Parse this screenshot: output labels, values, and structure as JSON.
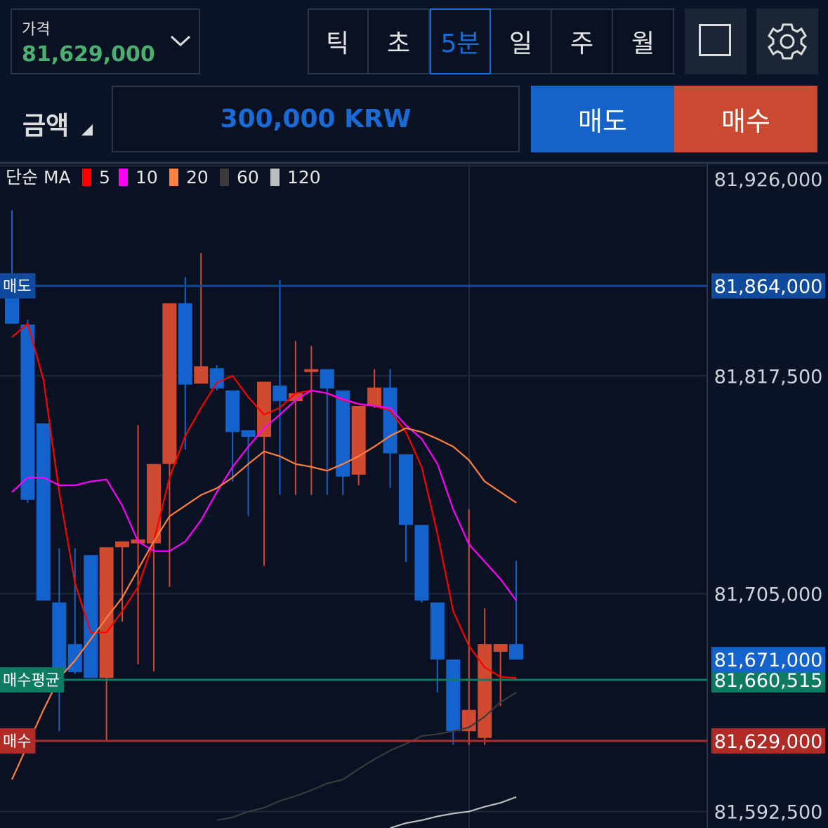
{
  "header": {
    "price_label": "가격",
    "price": "81,629,000",
    "tabs": [
      "틱",
      "초",
      "5분",
      "일",
      "주",
      "월"
    ],
    "selected_tab": "5분",
    "amount_label": "금액",
    "amount": "300,000 KRW",
    "sell_button": "매도",
    "buy_button": "매수"
  },
  "chart_data": {
    "type": "candlestick",
    "legend_title": "단순 MA",
    "up_color": "#cf4a30",
    "down_color": "#1463cc",
    "open": [
      81864500,
      81844000,
      81793000,
      81700500,
      81679000,
      81725000,
      81661500,
      81729000,
      81731000,
      81731000,
      81772000,
      81855000,
      81813500,
      81821500,
      81810000,
      81789500,
      81786000,
      81812500,
      81804500,
      81819500,
      81821000,
      81810000,
      81766500,
      81802000,
      81811500,
      81777000,
      81740500,
      81700500,
      81671000,
      81634000,
      81630500,
      81675000,
      81679000
    ],
    "high": [
      81903000,
      81846500,
      81793000,
      81728500,
      81728500,
      81725000,
      81729000,
      81732000,
      81792000,
      81772000,
      81855000,
      81868500,
      81881000,
      81823000,
      81810000,
      81789500,
      81814500,
      81867000,
      81835500,
      81833000,
      81821000,
      81810000,
      81802000,
      81821000,
      81821000,
      81777000,
      81740500,
      81700500,
      81671000,
      81748500,
      81697500,
      81679000,
      81722000
    ],
    "low": [
      81844500,
      81752000,
      81701500,
      81634000,
      81663500,
      81661500,
      81629000,
      81690500,
      81668500,
      81665000,
      81708500,
      81779500,
      81813500,
      81810000,
      81763000,
      81745000,
      81719500,
      81756000,
      81756000,
      81756000,
      81756000,
      81756000,
      81761000,
      81801000,
      81759500,
      81721500,
      81700500,
      81654000,
      81627000,
      81627000,
      81627000,
      81647000,
      81671000
    ],
    "close": [
      81844500,
      81753500,
      81701500,
      81664500,
      81664500,
      81661500,
      81729000,
      81732000,
      81733000,
      81772000,
      81855000,
      81813000,
      81822500,
      81811000,
      81788500,
      81786000,
      81814500,
      81804500,
      81808500,
      81821000,
      81811000,
      81765500,
      81802000,
      81811500,
      81777500,
      81740500,
      81701500,
      81671000,
      81634000,
      81645000,
      81679000,
      81679000,
      81671000
    ],
    "series": [
      {
        "name": "5",
        "color": "#ff0000",
        "values": [
          81837500,
          81844500,
          81815500,
          81757500,
          81710500,
          81685000,
          81685000,
          81696000,
          81708500,
          81732000,
          81765000,
          81786500,
          81801000,
          81814000,
          81817500,
          81806500,
          81797500,
          81801000,
          81808500,
          81810000,
          81808500,
          81805000,
          81803000,
          81802000,
          81799500,
          81788500,
          81770500,
          81736000,
          81696000,
          81678000,
          81667000,
          81662000,
          81661500
        ]
      },
      {
        "name": "10",
        "color": "#ff00ff",
        "values": [
          81757500,
          81765000,
          81765000,
          81761000,
          81761000,
          81763000,
          81764000,
          81750500,
          81732000,
          81727000,
          81727000,
          81732000,
          81743000,
          81757500,
          81770500,
          81781000,
          81790500,
          81797500,
          81805000,
          81810000,
          81808500,
          81805500,
          81803000,
          81802000,
          81801000,
          81792000,
          81785000,
          81772000,
          81748500,
          81730500,
          81721500,
          81712500,
          81701500
        ]
      },
      {
        "name": "20",
        "color": "#ff7f3f",
        "values": [
          81609000,
          81627000,
          81645000,
          81661500,
          81670500,
          81681500,
          81692500,
          81703000,
          81717500,
          81732000,
          81745000,
          81750500,
          81756000,
          81759500,
          81765000,
          81772000,
          81778500,
          81776000,
          81772000,
          81770500,
          81768500,
          81772000,
          81776000,
          81781000,
          81786500,
          81790500,
          81788500,
          81785000,
          81781000,
          81774000,
          81763000,
          81757500,
          81752000
        ]
      },
      {
        "name": "60",
        "color": "#3a3a3a",
        "values": [
          null,
          null,
          null,
          null,
          null,
          null,
          null,
          null,
          null,
          null,
          null,
          null,
          null,
          81588000,
          81589500,
          81592500,
          81594500,
          81598000,
          81600500,
          81603500,
          81607000,
          81609000,
          81614500,
          81619500,
          81624000,
          81627500,
          81631500,
          81632500,
          81634000,
          81636000,
          81641500,
          81649000,
          81654000
        ]
      },
      {
        "name": "120",
        "color": "#bdbdbd",
        "values": [
          null,
          null,
          null,
          null,
          null,
          null,
          null,
          null,
          null,
          null,
          null,
          null,
          null,
          null,
          null,
          null,
          null,
          null,
          null,
          null,
          null,
          null,
          null,
          null,
          81584000,
          81586500,
          81588000,
          81590000,
          81591500,
          81592500,
          81595000,
          81597000,
          81600000
        ]
      }
    ],
    "ylim": [
      81584000,
      81927500
    ],
    "yticks": [
      {
        "value": 81592500,
        "label": "81,592,500"
      },
      {
        "value": 81705000,
        "label": "81,705,000"
      },
      {
        "value": 81817500,
        "label": "81,817,500"
      },
      {
        "value": 81926000,
        "label": "81,926,000"
      }
    ],
    "grid": true,
    "price_lines": [
      {
        "label": "매도",
        "value": 81864000,
        "value_label": "81,864,000",
        "color": "#0f4a9c"
      },
      {
        "label": "매수평균",
        "value": 81660515,
        "value_label": "81,660,515",
        "color": "#0d7a62"
      },
      {
        "label": "매수",
        "value": 81629000,
        "value_label": "81,629,000",
        "color": "#b02a26"
      }
    ],
    "current_price": {
      "value": 81671000,
      "value_label": "81,671,000",
      "color": "#1463cc"
    }
  }
}
